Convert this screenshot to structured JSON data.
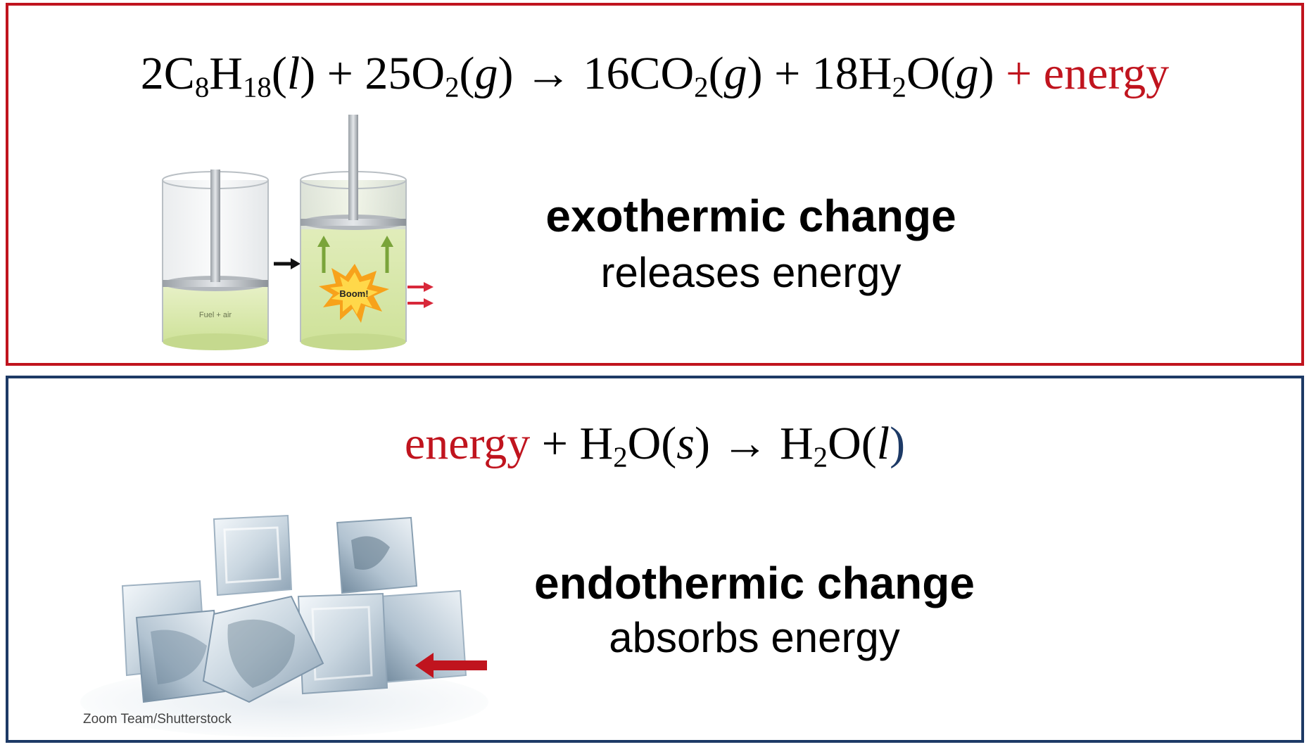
{
  "exothermic": {
    "equation": {
      "c1": "2C",
      "s1": "8",
      "h1": "H",
      "s2": "18",
      "o1": "(",
      "st1": "l",
      "c1b": ") + 25O",
      "s3": "2",
      "o2": "(",
      "st2": "g",
      "c2": ") → 16CO",
      "s4": "2",
      "o3": "(",
      "st3": "g",
      "c3": ") + 18H",
      "s5": "2",
      "o4": "O(",
      "st4": "g",
      "c4": ")",
      "energy": " + energy"
    },
    "title": "exothermic change",
    "subtitle": "releases energy",
    "illustration": {
      "left_label": "Fuel + air",
      "burst_label": "Boom!"
    }
  },
  "endothermic": {
    "equation": {
      "energy": "energy",
      "p1": " + H",
      "s1": "2",
      "p2": "O(",
      "st1": "s",
      "p3": ") → H",
      "s2": "2",
      "p4": "O(",
      "st2": "l",
      "p5": ")"
    },
    "title": "endothermic change",
    "subtitle": "absorbs energy",
    "credit": "Zoom Team/Shutterstock"
  },
  "colors": {
    "exo_border": "#c0141e",
    "endo_border": "#1d3a66",
    "accent": "#c0141e"
  }
}
